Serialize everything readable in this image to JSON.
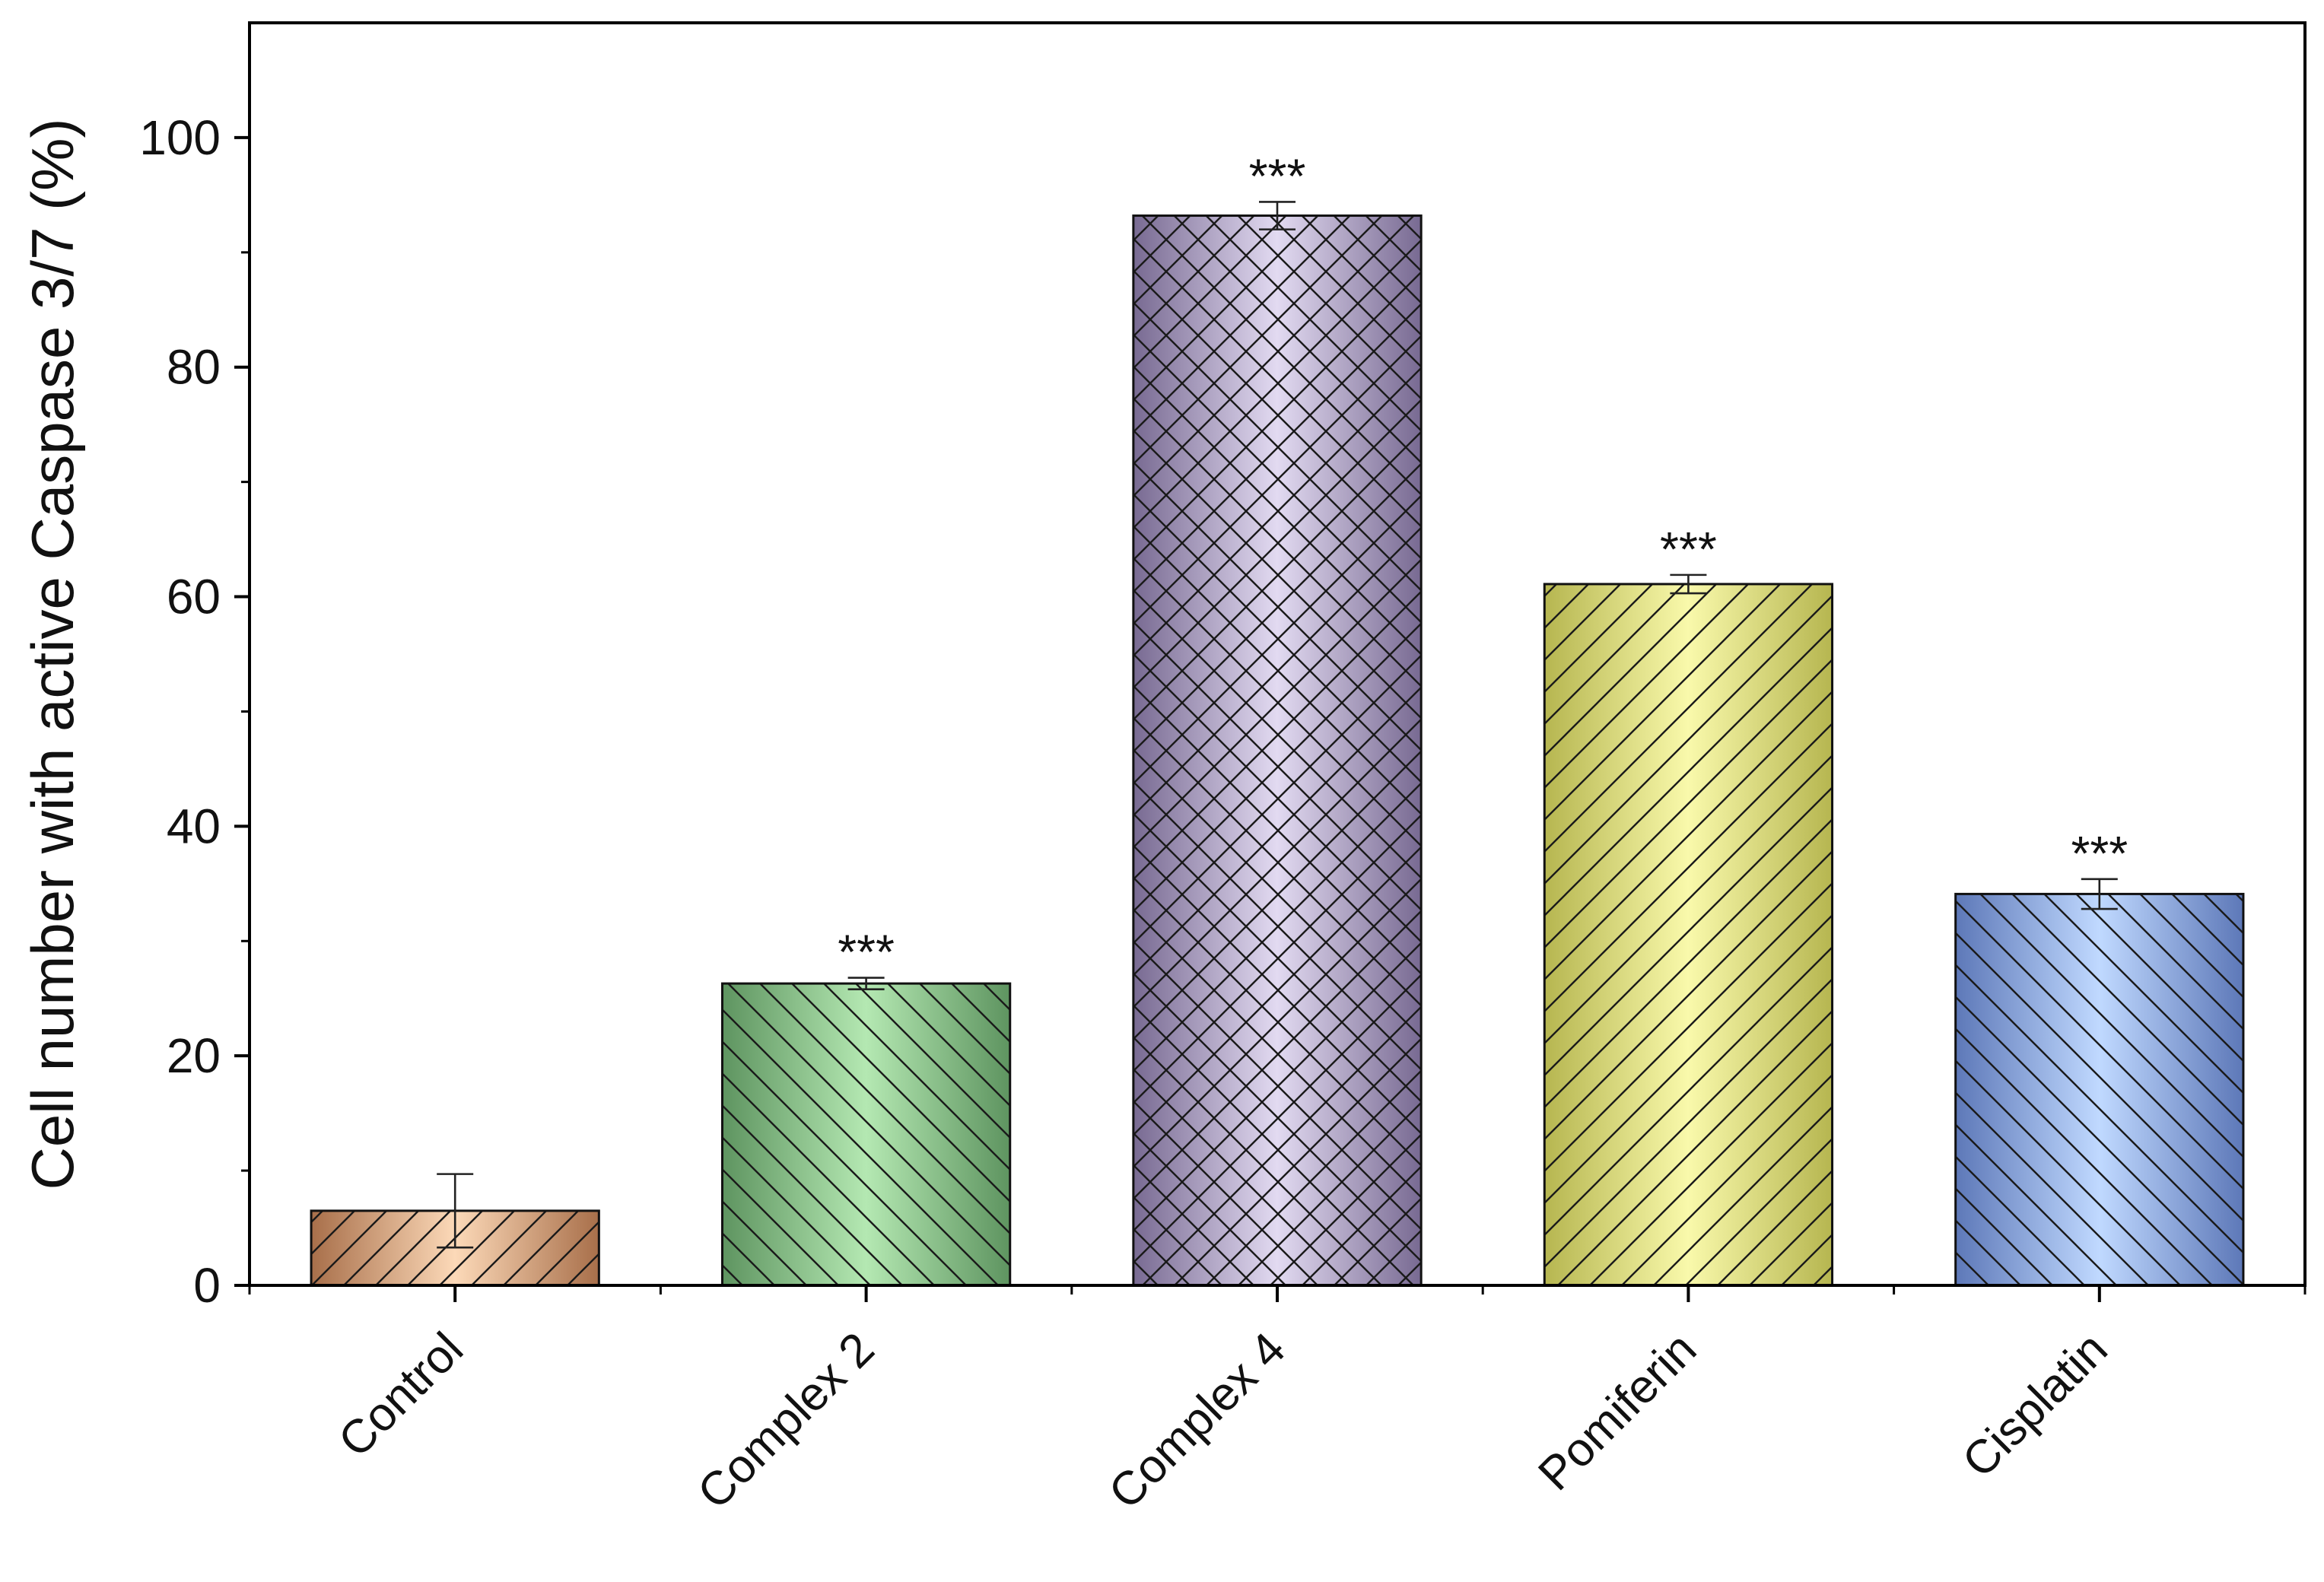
{
  "chart_data": {
    "type": "bar",
    "title": "",
    "xlabel": "",
    "ylabel": "Cell number with active Caspase 3/7 (%)",
    "ylim": [
      0,
      110
    ],
    "yticks": [
      0,
      20,
      40,
      60,
      80,
      100
    ],
    "grid": false,
    "legend": "none",
    "categories": [
      "Control",
      "Complex 2",
      "Complex 4",
      "Pomiferin",
      "Cisplatin"
    ],
    "values": [
      6.5,
      26.3,
      93.2,
      61.1,
      34.1
    ],
    "errors": [
      3.2,
      0.5,
      1.2,
      0.8,
      1.3
    ],
    "significance": [
      "",
      "***",
      "***",
      "***",
      "***"
    ],
    "bar_styles": [
      {
        "edge": "#a86f4a",
        "center": "#fcd9b8",
        "hatch": "single-forward"
      },
      {
        "edge": "#5e9460",
        "center": "#b4e8b2",
        "hatch": "single-backward"
      },
      {
        "edge": "#786a92",
        "center": "#e2daf1",
        "hatch": "cross"
      },
      {
        "edge": "#b6b650",
        "center": "#f9f9ab",
        "hatch": "single-forward"
      },
      {
        "edge": "#5d78b8",
        "center": "#c0d9ff",
        "hatch": "single-backward"
      }
    ]
  }
}
